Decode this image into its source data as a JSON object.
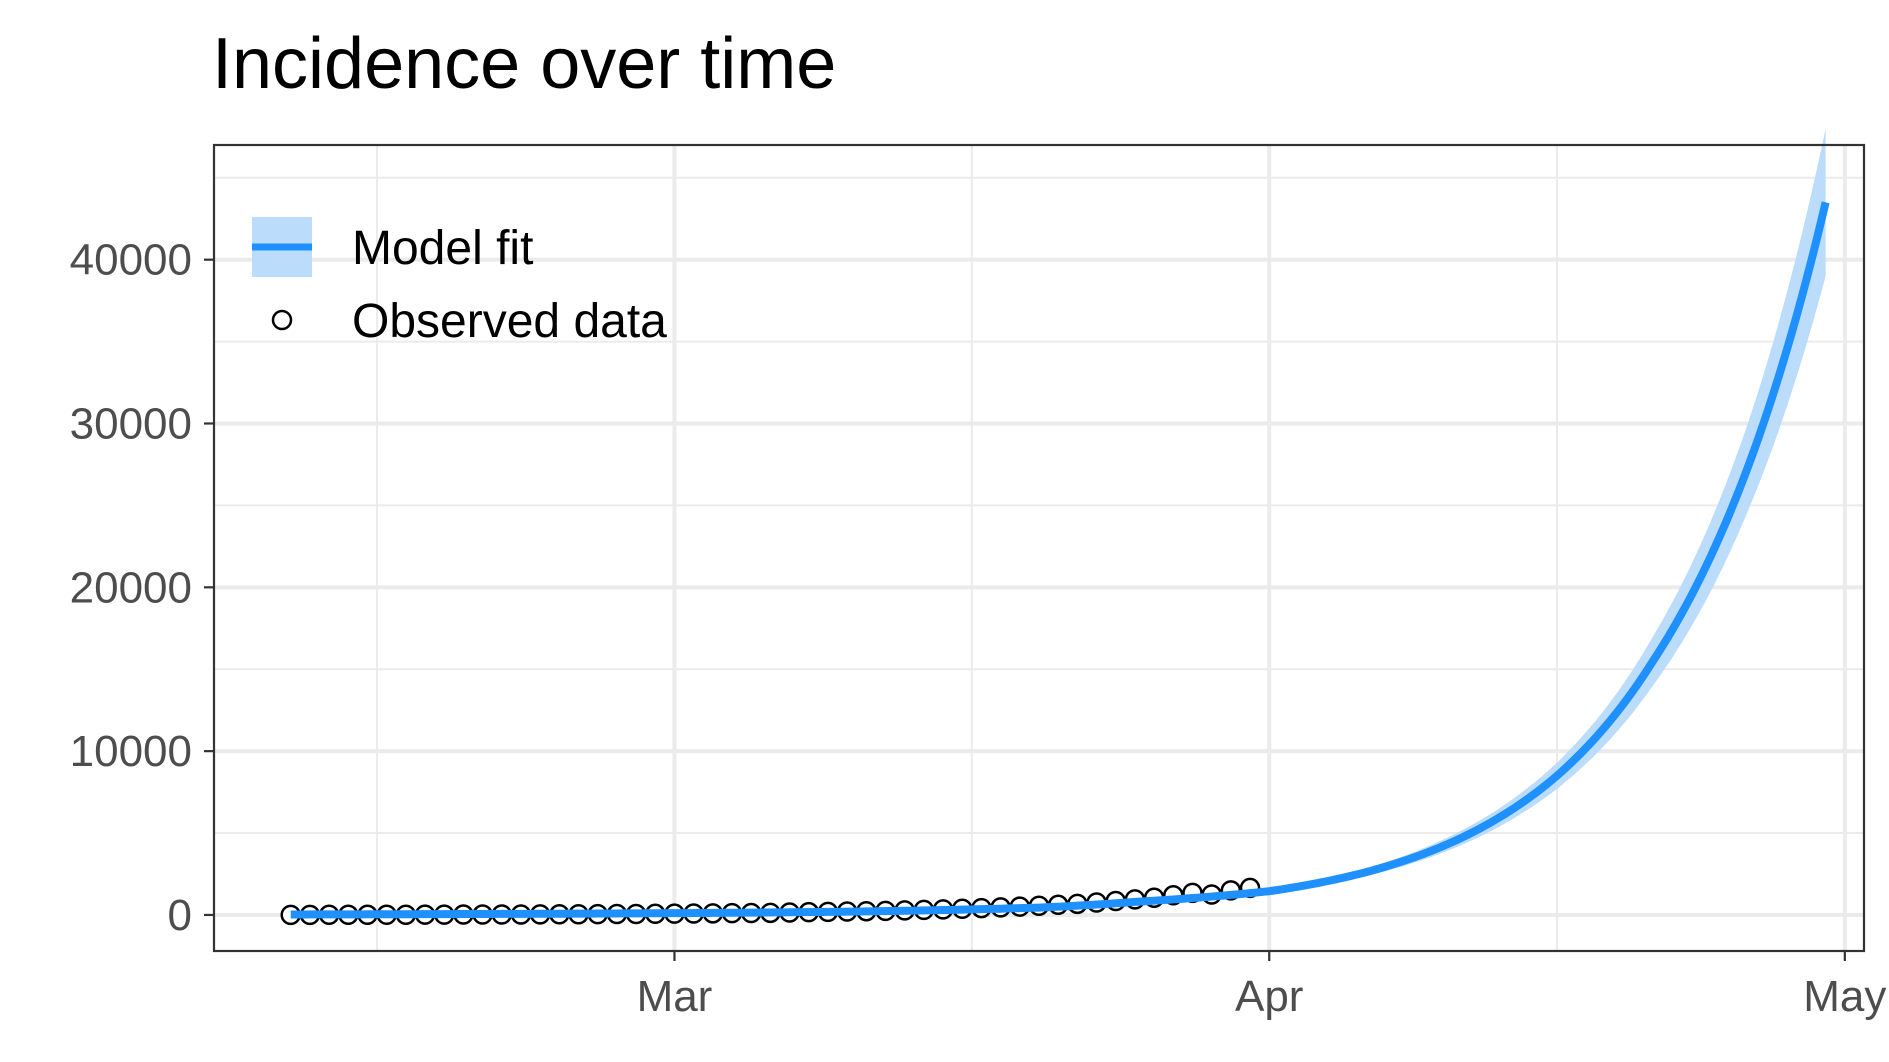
{
  "chart_data": {
    "type": "line",
    "title": "Incidence over time",
    "xlabel": "",
    "ylabel": "",
    "x_axis": {
      "type": "date",
      "range": [
        "2020-02-06",
        "2020-05-02"
      ],
      "ticks": [
        {
          "date": "2020-03-01",
          "label": "Mar"
        },
        {
          "date": "2020-04-01",
          "label": "Apr"
        },
        {
          "date": "2020-05-01",
          "label": "May"
        }
      ]
    },
    "y_axis": {
      "range": [
        -2200,
        47000
      ],
      "ticks": [
        0,
        10000,
        20000,
        30000,
        40000
      ],
      "tick_labels": [
        "0",
        "10000",
        "20000",
        "30000",
        "40000"
      ]
    },
    "grid": true,
    "legend": {
      "position": "top-left",
      "entries": [
        {
          "label": "Model fit",
          "kind": "line-ribbon"
        },
        {
          "label": "Observed data",
          "kind": "open-circle"
        }
      ]
    },
    "series": [
      {
        "name": "Model fit",
        "color": "#1e90ff",
        "ribbon_color": "#bcdcfb",
        "x": [
          "2020-02-10",
          "2020-02-20",
          "2020-03-01",
          "2020-03-10",
          "2020-03-20",
          "2020-03-25",
          "2020-04-01",
          "2020-04-06",
          "2020-04-11",
          "2020-04-16",
          "2020-04-21",
          "2020-04-26",
          "2020-04-30"
        ],
        "y": [
          30,
          60,
          110,
          200,
          450,
          800,
          1450,
          2600,
          4700,
          8500,
          15500,
          27500,
          43500
        ],
        "lower": [
          25,
          55,
          100,
          185,
          410,
          730,
          1320,
          2360,
          4260,
          7700,
          14000,
          24800,
          39000
        ],
        "upper": [
          35,
          66,
          120,
          215,
          490,
          870,
          1580,
          2840,
          5140,
          9300,
          17000,
          30200,
          48000
        ]
      },
      {
        "name": "Observed data",
        "marker": "open-circle",
        "color": "#000000",
        "x": [
          "2020-02-10",
          "2020-02-11",
          "2020-02-12",
          "2020-02-13",
          "2020-02-14",
          "2020-02-15",
          "2020-02-16",
          "2020-02-17",
          "2020-02-18",
          "2020-02-19",
          "2020-02-20",
          "2020-02-21",
          "2020-02-22",
          "2020-02-23",
          "2020-02-24",
          "2020-02-25",
          "2020-02-26",
          "2020-02-27",
          "2020-02-28",
          "2020-02-29",
          "2020-03-01",
          "2020-03-02",
          "2020-03-03",
          "2020-03-04",
          "2020-03-05",
          "2020-03-06",
          "2020-03-07",
          "2020-03-08",
          "2020-03-09",
          "2020-03-10",
          "2020-03-11",
          "2020-03-12",
          "2020-03-13",
          "2020-03-14",
          "2020-03-15",
          "2020-03-16",
          "2020-03-17",
          "2020-03-18",
          "2020-03-19",
          "2020-03-20",
          "2020-03-21",
          "2020-03-22",
          "2020-03-23",
          "2020-03-24",
          "2020-03-25",
          "2020-03-26",
          "2020-03-27",
          "2020-03-28",
          "2020-03-29",
          "2020-03-30",
          "2020-03-31"
        ],
        "y": [
          5,
          5,
          10,
          10,
          10,
          15,
          15,
          20,
          20,
          25,
          25,
          30,
          30,
          35,
          40,
          45,
          50,
          55,
          60,
          70,
          80,
          90,
          100,
          110,
          120,
          130,
          150,
          170,
          190,
          210,
          230,
          250,
          280,
          310,
          340,
          380,
          420,
          460,
          510,
          560,
          620,
          680,
          760,
          850,
          950,
          1050,
          1200,
          1350,
          1250,
          1500,
          1650
        ]
      }
    ]
  }
}
